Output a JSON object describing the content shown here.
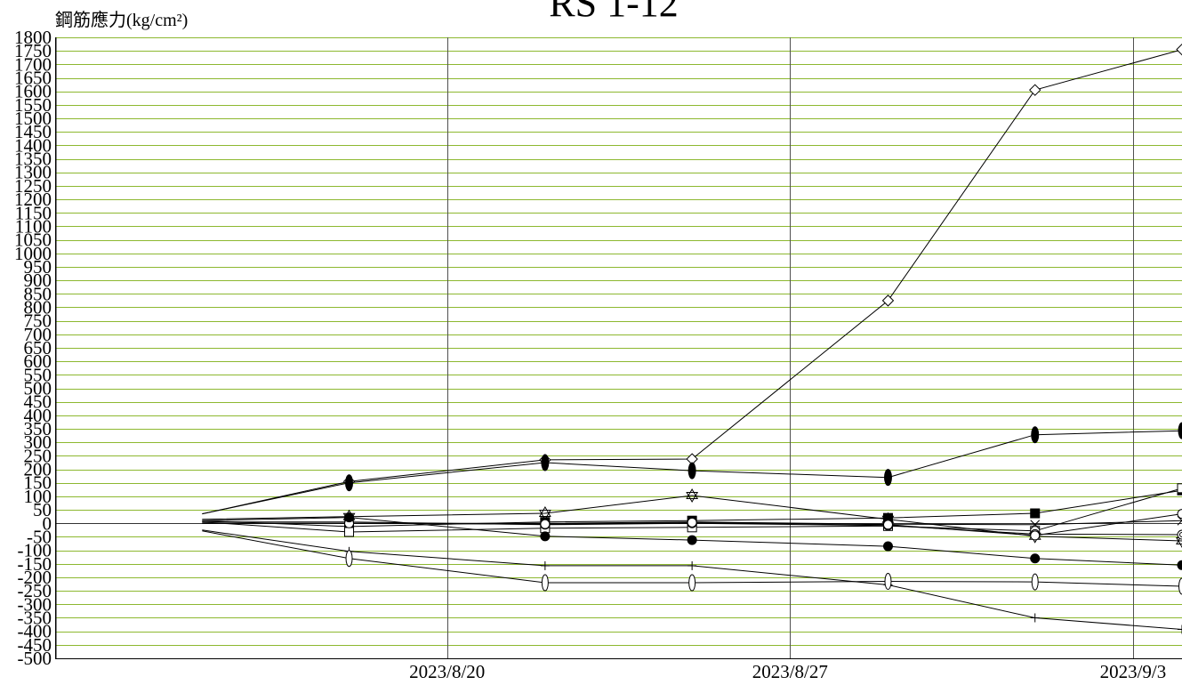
{
  "chart_data": {
    "type": "line",
    "title": "RS 1-12",
    "ylabel": "鋼筋應力(kg/cm²)",
    "xlabel": "",
    "ylim": [
      -500,
      1800
    ],
    "yticks": [
      1800,
      1750,
      1700,
      1650,
      1600,
      1550,
      1500,
      1450,
      1400,
      1350,
      1300,
      1250,
      1200,
      1150,
      1100,
      1050,
      1000,
      950,
      900,
      850,
      800,
      750,
      700,
      650,
      600,
      550,
      500,
      450,
      400,
      350,
      300,
      250,
      200,
      150,
      100,
      50,
      0,
      -50,
      -100,
      -150,
      -200,
      -250,
      -300,
      -350,
      -400,
      -450,
      -500
    ],
    "xlim": [
      "2023-08-12",
      "2023-09-04"
    ],
    "xticks": [
      {
        "value": "2023-08-20",
        "label": "2023/8/20"
      },
      {
        "value": "2023-08-27",
        "label": "2023/8/27"
      },
      {
        "value": "2023-09-03",
        "label": "2023/9/3"
      }
    ],
    "x": [
      "2023-08-15",
      "2023-08-18",
      "2023-08-22",
      "2023-08-25",
      "2023-08-29",
      "2023-09-01",
      "2023-09-04"
    ],
    "grid": true,
    "legend": "none",
    "colors": {
      "line": "#000000",
      "grid_horizontal": "#8DB830",
      "grid_vertical": "#505050",
      "zero_line": "#333333",
      "axis": "#000000"
    },
    "series": [
      {
        "marker": "diamond",
        "values": [
          35,
          155,
          235,
          238,
          825,
          1605,
          1755
        ]
      },
      {
        "marker": "filled-ellipse",
        "values": [
          35,
          150,
          225,
          195,
          170,
          328,
          343
        ]
      },
      {
        "marker": "hexagram",
        "values": [
          15,
          25,
          37,
          103,
          15,
          -48,
          -65
        ]
      },
      {
        "marker": "filled-square",
        "values": [
          10,
          -12,
          5,
          10,
          20,
          37,
          122
        ]
      },
      {
        "marker": "open-square",
        "values": [
          5,
          -32,
          -18,
          -15,
          -10,
          -28,
          130
        ]
      },
      {
        "marker": "double-circle",
        "values": [
          5,
          5,
          -5,
          0,
          -8,
          -40,
          -42
        ]
      },
      {
        "marker": "cross",
        "values": [
          0,
          0,
          0,
          5,
          -3,
          -5,
          10
        ]
      },
      {
        "marker": "open-circle",
        "values": [
          0,
          0,
          -3,
          3,
          -5,
          -45,
          35
        ]
      },
      {
        "marker": "filled-circle",
        "values": [
          10,
          22,
          -48,
          -62,
          -85,
          -130,
          -155
        ]
      },
      {
        "marker": "plus",
        "values": [
          -25,
          -104,
          -157,
          -157,
          -228,
          -350,
          -393
        ]
      },
      {
        "marker": "open-ellipse",
        "values": [
          -28,
          -130,
          -220,
          -220,
          -215,
          -217,
          -233
        ]
      }
    ]
  }
}
